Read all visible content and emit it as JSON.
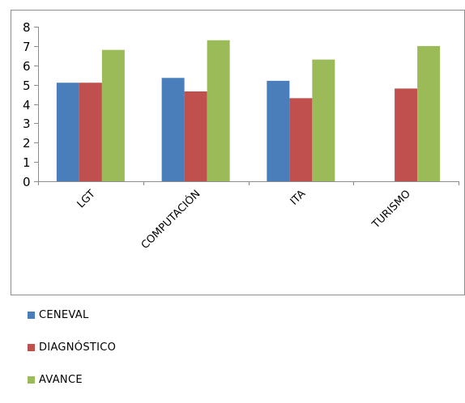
{
  "chart_data": {
    "type": "bar",
    "categories": [
      "LGT",
      "COMPUTACIÓN",
      "ITA",
      "TURISMO"
    ],
    "series": [
      {
        "name": "CENEVAL",
        "color": "#4a7ebb",
        "values": [
          5.1,
          5.35,
          5.2,
          null
        ]
      },
      {
        "name": "DIAGNÓSTICO",
        "color": "#c0504d",
        "values": [
          5.1,
          4.65,
          4.3,
          4.8
        ]
      },
      {
        "name": "AVANCE",
        "color": "#9bbb59",
        "values": [
          6.8,
          7.3,
          6.3,
          7.0
        ]
      }
    ],
    "ylim": [
      0,
      8
    ],
    "yticks": [
      "0",
      "1",
      "2",
      "3",
      "4",
      "5",
      "6",
      "7",
      "8"
    ],
    "grid": false,
    "legend_position": "bottom-left"
  }
}
